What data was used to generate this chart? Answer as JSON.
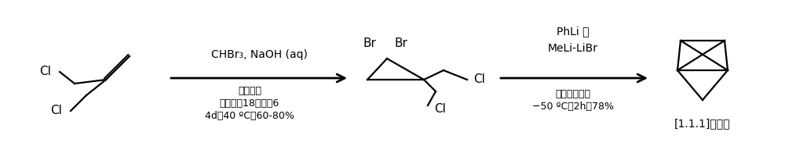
{
  "bg_color": "#ffffff",
  "fig_width": 10.0,
  "fig_height": 2.1,
  "dpi": 100,
  "arrow1_label_top": "CHBr₃, NaOH (aq)",
  "arrow1_label_bot1": "频哪醇，",
  "arrow1_label_bot2": "二苯并－18－冠－6",
  "arrow1_label_bot3": "4d，40 ºC，60-80%",
  "arrow2_label_top1": "PhLi 或",
  "arrow2_label_top2": "MeLi-LiBr",
  "arrow2_label_bot1": "戊烷，乙醚，",
  "arrow2_label_bot2": "−50 ºC，2h，78%",
  "propellane_label": "[1.1.1]螺桨烷"
}
